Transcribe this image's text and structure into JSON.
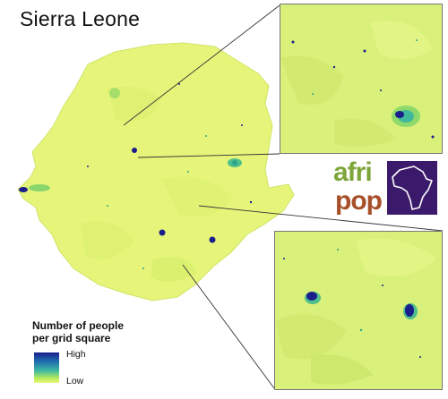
{
  "title": "Sierra Leone",
  "legend": {
    "title_line1": "Number of people",
    "title_line2": "per grid square",
    "high": "High",
    "low": "Low"
  },
  "logo": {
    "word1": "afri",
    "word2": "pop"
  },
  "colors": {
    "land": "#e6f57a",
    "land_dark": "#d6ee6a",
    "settlement_low": "#7fd36a",
    "settlement_mid": "#2aa58c",
    "settlement_high": "#1a1f8c",
    "inset_bg": "#d9f07a",
    "logo_green": "#7ea53a",
    "logo_brown": "#a8502a",
    "logo_purple": "#3b1a6b"
  }
}
